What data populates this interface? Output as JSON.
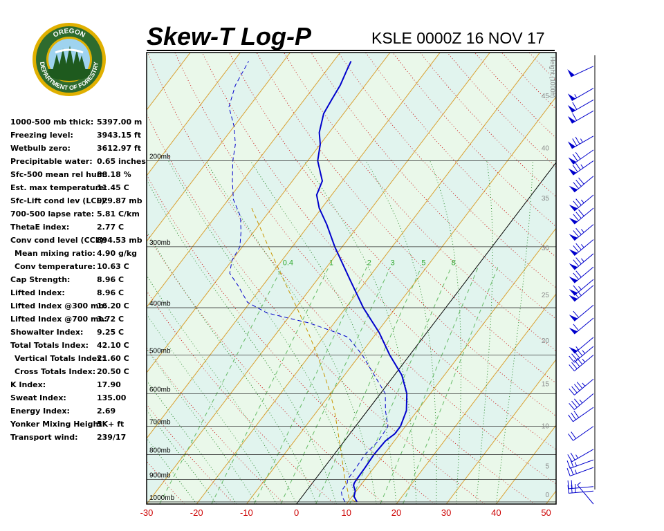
{
  "header": {
    "title": "Skew-T Log-P",
    "subtitle": "KSLE 0000Z 16 NOV 17"
  },
  "logo": {
    "top_text": "OREGON",
    "bottom_text": "DEPARTMENT OF FORESTRY",
    "colors": {
      "ring": "#2e6b2e",
      "gold": "#e0b000",
      "tree": "#1e5a1e",
      "sky": "#9fd3ef"
    }
  },
  "stats": [
    {
      "label": "1000-500 mb thick:",
      "value": "5397.00 m"
    },
    {
      "label": "Freezing level:",
      "value": "3943.15 ft"
    },
    {
      "label": "Wetbulb zero:",
      "value": "3612.97 ft"
    },
    {
      "label": "Precipitable water:",
      "value": "0.65 inches"
    },
    {
      "label": "Sfc-500 mean rel hum:",
      "value": "88.18 %"
    },
    {
      "label": "Est. max temperature:",
      "value": "11.45 C"
    },
    {
      "label": "Sfc-Lift cond lev (LCL):",
      "value": "979.87 mb"
    },
    {
      "label": "700-500 lapse rate:",
      "value": "5.81 C/km"
    },
    {
      "label": "ThetaE index:",
      "value": "2.77 C"
    },
    {
      "label": "Conv cond level (CCL):",
      "value": "894.53 mb"
    },
    {
      "label": "Mean mixing ratio:",
      "value": "4.90 g/kg",
      "indent": true
    },
    {
      "label": "Conv temperature:",
      "value": "10.63 C",
      "indent": true
    },
    {
      "label": "Cap Strength:",
      "value": "8.96 C"
    },
    {
      "label": "Lifted Index:",
      "value": "8.96 C"
    },
    {
      "label": "Lifted Index @300 mb:",
      "value": "16.20 C"
    },
    {
      "label": "Lifted Index @700 mb:",
      "value": "3.72 C"
    },
    {
      "label": "Showalter Index:",
      "value": "9.25 C"
    },
    {
      "label": "Total Totals Index:",
      "value": "42.10 C"
    },
    {
      "label": "Vertical Totals Index:",
      "value": "21.60 C",
      "indent": true
    },
    {
      "label": "Cross Totals Index:",
      "value": "20.50 C",
      "indent": true
    },
    {
      "label": "K Index:",
      "value": "17.90"
    },
    {
      "label": "Sweat Index:",
      "value": "135.00"
    },
    {
      "label": "Energy Index:",
      "value": "2.69"
    },
    {
      "label": "Yonker Mixing Height:",
      "value": "5K+ ft"
    },
    {
      "label": "Transport wind:",
      "value": "239/17"
    }
  ],
  "chart_data": {
    "type": "line",
    "title": "Skew-T Log-P",
    "subtitle": "KSLE 0000Z 16 NOV 17",
    "x_axis": {
      "ticks": [
        -30,
        -20,
        -10,
        0,
        10,
        20,
        30,
        40,
        50
      ],
      "range": [
        -30,
        52
      ],
      "color": "#cc0000"
    },
    "pressure_axis": {
      "levels": [
        200,
        300,
        400,
        500,
        600,
        700,
        800,
        900,
        1000
      ],
      "labels": [
        "200mb",
        "300mb",
        "400mb",
        "500mb",
        "600mb",
        "700mb",
        "800mb",
        "900mb",
        "1000mb"
      ],
      "range_mb": [
        1010,
        120
      ],
      "scale": "log"
    },
    "height_axis": {
      "label": "Height (1000ft)",
      "ticks": [
        0,
        5,
        10,
        15,
        20,
        25,
        30,
        35,
        40,
        45,
        50
      ]
    },
    "mixing_ratio_labels": [
      "0.4",
      "1",
      "2",
      "3",
      "5",
      "8"
    ],
    "series": [
      {
        "key": "temperature",
        "style": "solid",
        "color": "#0000cc",
        "points": [
          [
            1000,
            11.8
          ],
          [
            975,
            10.4
          ],
          [
            950,
            9.8
          ],
          [
            925,
            8.6
          ],
          [
            915,
            8.4
          ],
          [
            900,
            8.3
          ],
          [
            850,
            8.2
          ],
          [
            800,
            8.0
          ],
          [
            750,
            8.2
          ],
          [
            725,
            9.0
          ],
          [
            700,
            9.0
          ],
          [
            650,
            7.8
          ],
          [
            600,
            5.3
          ],
          [
            550,
            1.5
          ],
          [
            500,
            -4.0
          ],
          [
            450,
            -9.5
          ],
          [
            400,
            -16.5
          ],
          [
            350,
            -23.5
          ],
          [
            300,
            -31.5
          ],
          [
            270,
            -36.5
          ],
          [
            250,
            -40.5
          ],
          [
            235,
            -43.0
          ],
          [
            220,
            -44.0
          ],
          [
            200,
            -48.0
          ],
          [
            185,
            -50.0
          ],
          [
            175,
            -52.0
          ],
          [
            160,
            -54.0
          ],
          [
            150,
            -54.5
          ],
          [
            140,
            -55.0
          ],
          [
            130,
            -56.0
          ],
          [
            125,
            -56.5
          ]
        ]
      },
      {
        "key": "dewpoint",
        "style": "dashed",
        "color": "#0000cc",
        "points": [
          [
            1000,
            9.4
          ],
          [
            975,
            8.0
          ],
          [
            950,
            7.0
          ],
          [
            915,
            7.0
          ],
          [
            900,
            6.5
          ],
          [
            850,
            6.4
          ],
          [
            800,
            6.2
          ],
          [
            750,
            6.8
          ],
          [
            700,
            6.5
          ],
          [
            650,
            3.6
          ],
          [
            600,
            1.0
          ],
          [
            550,
            -4.0
          ],
          [
            500,
            -9.5
          ],
          [
            460,
            -15.0
          ],
          [
            450,
            -18.0
          ],
          [
            430,
            -25.0
          ],
          [
            410,
            -35.0
          ],
          [
            390,
            -40.5
          ],
          [
            360,
            -45.0
          ],
          [
            340,
            -48.5
          ],
          [
            320,
            -50.0
          ],
          [
            300,
            -50.5
          ],
          [
            280,
            -52.5
          ],
          [
            260,
            -55.0
          ],
          [
            240,
            -59.0
          ],
          [
            220,
            -62.0
          ],
          [
            200,
            -65.0
          ],
          [
            185,
            -67.0
          ],
          [
            170,
            -70.0
          ],
          [
            155,
            -74.0
          ],
          [
            140,
            -76.0
          ],
          [
            125,
            -77.0
          ]
        ]
      },
      {
        "key": "parcel",
        "style": "dashed",
        "color": "#c89600",
        "points": [
          [
            1000,
            11.5
          ],
          [
            980,
            9.5
          ],
          [
            950,
            8.3
          ],
          [
            900,
            6.0
          ],
          [
            850,
            3.8
          ],
          [
            800,
            1.5
          ],
          [
            750,
            -1.0
          ],
          [
            700,
            -3.7
          ],
          [
            650,
            -6.6
          ],
          [
            600,
            -10.0
          ],
          [
            550,
            -14.0
          ],
          [
            500,
            -18.5
          ],
          [
            450,
            -23.7
          ],
          [
            400,
            -29.8
          ],
          [
            350,
            -36.8
          ],
          [
            300,
            -44.8
          ],
          [
            250,
            -54.0
          ]
        ]
      }
    ],
    "winds": [
      {
        "pressure": 1010,
        "dir": 320,
        "speed": 5
      },
      {
        "pressure": 950,
        "dir": 265,
        "speed": 25
      },
      {
        "pressure": 930,
        "dir": 265,
        "speed": 25
      },
      {
        "pressure": 850,
        "dir": 250,
        "speed": 25
      },
      {
        "pressure": 820,
        "dir": 250,
        "speed": 25
      },
      {
        "pressure": 780,
        "dir": 240,
        "speed": 25
      },
      {
        "pressure": 700,
        "dir": 235,
        "speed": 20
      },
      {
        "pressure": 640,
        "dir": 235,
        "speed": 30
      },
      {
        "pressure": 600,
        "dir": 230,
        "speed": 35
      },
      {
        "pressure": 560,
        "dir": 230,
        "speed": 45
      },
      {
        "pressure": 500,
        "dir": 230,
        "speed": 45
      },
      {
        "pressure": 480,
        "dir": 230,
        "speed": 45
      },
      {
        "pressure": 460,
        "dir": 230,
        "speed": 55
      },
      {
        "pressure": 420,
        "dir": 230,
        "speed": 60
      },
      {
        "pressure": 395,
        "dir": 230,
        "speed": 60
      },
      {
        "pressure": 360,
        "dir": 230,
        "speed": 65
      },
      {
        "pressure": 350,
        "dir": 230,
        "speed": 65
      },
      {
        "pressure": 330,
        "dir": 230,
        "speed": 70
      },
      {
        "pressure": 310,
        "dir": 230,
        "speed": 75
      },
      {
        "pressure": 290,
        "dir": 230,
        "speed": 75
      },
      {
        "pressure": 270,
        "dir": 230,
        "speed": 75
      },
      {
        "pressure": 250,
        "dir": 230,
        "speed": 80
      },
      {
        "pressure": 235,
        "dir": 230,
        "speed": 75
      },
      {
        "pressure": 215,
        "dir": 230,
        "speed": 80
      },
      {
        "pressure": 200,
        "dir": 235,
        "speed": 75
      },
      {
        "pressure": 190,
        "dir": 235,
        "speed": 70
      },
      {
        "pressure": 178,
        "dir": 240,
        "speed": 75
      },
      {
        "pressure": 158,
        "dir": 240,
        "speed": 60
      },
      {
        "pressure": 150,
        "dir": 240,
        "speed": 60
      },
      {
        "pressure": 142,
        "dir": 240,
        "speed": 55
      },
      {
        "pressure": 128,
        "dir": 245,
        "speed": 50
      }
    ],
    "colors": {
      "background": "#eaf8ea",
      "isotherm": "#d9a030",
      "dry_adiabat": "#cc8800",
      "moist_adiabat": "#33aa33",
      "mixing_ratio": "#66bb66",
      "isobar": "#333333",
      "zero_isotherm": "#000000",
      "wind_barb": "#0000cc"
    }
  }
}
